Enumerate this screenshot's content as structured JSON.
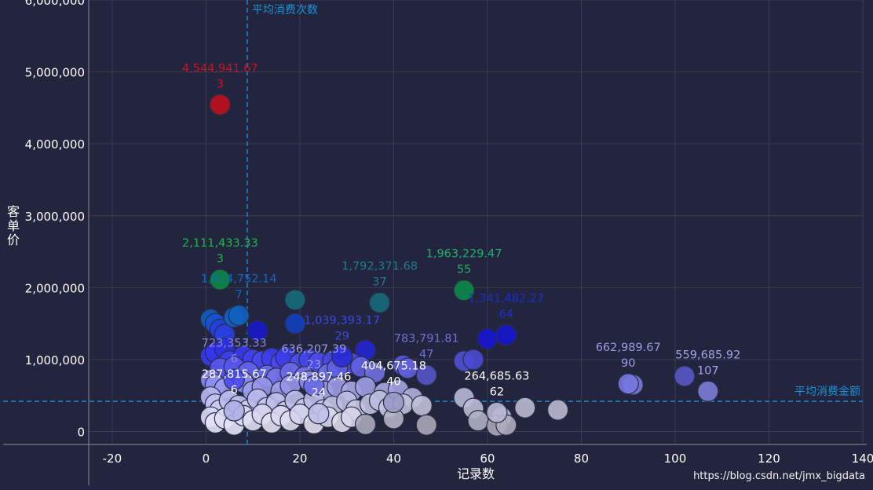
{
  "watermark": "https://blog.csdn.net/jmx_bigdata",
  "chart_data": {
    "type": "scatter",
    "xlabel": "记录数",
    "ylabel": "客单价",
    "xlim": [
      -25,
      140
    ],
    "ylim": [
      -180000,
      6000000
    ],
    "xticks": [
      -20,
      0,
      20,
      40,
      60,
      80,
      100,
      120,
      140
    ],
    "yticks": [
      0,
      1000000,
      2000000,
      3000000,
      4000000,
      5000000,
      6000000
    ],
    "xtick_labels": [
      "-20",
      "0",
      "20",
      "40",
      "60",
      "80",
      "100",
      "120",
      "140"
    ],
    "ytick_labels": [
      "0",
      "1,000,000",
      "2,000,000",
      "3,000,000",
      "4,000,000",
      "5,000,000",
      "6,000,000"
    ],
    "grid": true,
    "avg_x": 8.8,
    "avg_x_label": "平均消费次数",
    "avg_y": 420000,
    "avg_y_label": "平均消费金额",
    "colors": {
      "background": "#22253d",
      "grid": "#3a3e52",
      "avg_line": "#1e90d6",
      "red": "#c0101c",
      "green": "#0b8a3f",
      "teal": "#136c7c",
      "deep_blue": "#1010c8",
      "blue": "#3a3adf",
      "light": "#e8e8ff"
    },
    "labeled_points": [
      {
        "x": 3,
        "y": 4544941.67,
        "value_text": "4,544,941.67",
        "count_text": "3",
        "color": "#c0101c",
        "label_color": "#cc1020"
      },
      {
        "x": 3,
        "y": 2111433.33,
        "value_text": "2,111,433.33",
        "count_text": "3",
        "color": "#0b8a3f",
        "label_color": "#1bb650"
      },
      {
        "x": 55,
        "y": 1963229.47,
        "value_text": "1,963,229.47",
        "count_text": "55",
        "color": "#0b8a4a",
        "label_color": "#1db26a"
      },
      {
        "x": 37,
        "y": 1792371.68,
        "value_text": "1,792,371.68",
        "count_text": "37",
        "color": "#166a7a",
        "label_color": "#1e7c8e"
      },
      {
        "x": 7,
        "y": 1614752.14,
        "value_text": "1,614,752.14",
        "count_text": "7",
        "color": "#1060c0",
        "label_color": "#1466c6"
      },
      {
        "x": 64,
        "y": 1341482.27,
        "value_text": "1,341,482.27",
        "count_text": "64",
        "color": "#1515d0",
        "label_color": "#1a2ed4"
      },
      {
        "x": 29,
        "y": 1039393.17,
        "value_text": "1,039,393.17",
        "count_text": "29",
        "color": "#2b2bd8",
        "label_color": "#3a4ae0"
      },
      {
        "x": 47,
        "y": 783791.81,
        "value_text": "783,791.81",
        "count_text": "47",
        "color": "#5555c8",
        "label_color": "#7070d8"
      },
      {
        "x": 6,
        "y": 723353.33,
        "value_text": "723,353.33",
        "count_text": "6",
        "color": "#4a4af0",
        "label_color": "#8a8ad8"
      },
      {
        "x": 23,
        "y": 636207.39,
        "value_text": "636,207.39",
        "count_text": "23",
        "color": "#6a6ae6",
        "label_color": "#9a9ae6"
      },
      {
        "x": 90,
        "y": 662989.67,
        "value_text": "662,989.67",
        "count_text": "90",
        "color": "#7777e0",
        "label_color": "#9c9ce6"
      },
      {
        "x": 107,
        "y": 559685.92,
        "value_text": "559,685.92",
        "count_text": "107",
        "color": "#7c7cd6",
        "label_color": "#a4a4ea"
      },
      {
        "x": 40,
        "y": 404675.18,
        "value_text": "404,675.18",
        "count_text": "40",
        "color": "#9a9ac8",
        "label_color": "#ffffff"
      },
      {
        "x": 6,
        "y": 287815.67,
        "value_text": "287,815.67",
        "count_text": "6",
        "color": "#b0b0e6",
        "label_color": "#ffffff"
      },
      {
        "x": 24,
        "y": 248897.46,
        "value_text": "248,897.46",
        "count_text": "24",
        "color": "#c0c0ea",
        "label_color": "#ffffff"
      },
      {
        "x": 62,
        "y": 264685.63,
        "value_text": "264,685.63",
        "count_text": "62",
        "color": "#b8b8d4",
        "label_color": "#ffffff"
      }
    ],
    "points": [
      {
        "x": 1,
        "y": 1560000,
        "color": "#1060c0"
      },
      {
        "x": 2,
        "y": 1500000,
        "color": "#1a50d0"
      },
      {
        "x": 3,
        "y": 1420000,
        "color": "#2040d8"
      },
      {
        "x": 4,
        "y": 1350000,
        "color": "#2a3ee0"
      },
      {
        "x": 6,
        "y": 1590000,
        "color": "#1464c4"
      },
      {
        "x": 11,
        "y": 1400000,
        "color": "#1818cc"
      },
      {
        "x": 19,
        "y": 1830000,
        "color": "#156c7a"
      },
      {
        "x": 19,
        "y": 1500000,
        "color": "#1440c0"
      },
      {
        "x": 60,
        "y": 1290000,
        "color": "#1515d0"
      },
      {
        "x": 34,
        "y": 1130000,
        "color": "#2525d4"
      },
      {
        "x": 1,
        "y": 1050000,
        "color": "#3a3aee"
      },
      {
        "x": 2,
        "y": 1100000,
        "color": "#3535ec"
      },
      {
        "x": 4,
        "y": 1150000,
        "color": "#3030e8"
      },
      {
        "x": 5,
        "y": 980000,
        "color": "#4040f0"
      },
      {
        "x": 8,
        "y": 1050000,
        "color": "#3a3aee"
      },
      {
        "x": 10,
        "y": 1000000,
        "color": "#4040f0"
      },
      {
        "x": 12,
        "y": 980000,
        "color": "#4848ee"
      },
      {
        "x": 14,
        "y": 1020000,
        "color": "#3e3eee"
      },
      {
        "x": 16,
        "y": 960000,
        "color": "#4a4aee"
      },
      {
        "x": 17,
        "y": 1030000,
        "color": "#3c3cec"
      },
      {
        "x": 20,
        "y": 950000,
        "color": "#5050ee"
      },
      {
        "x": 22,
        "y": 1000000,
        "color": "#4444ee"
      },
      {
        "x": 24,
        "y": 960000,
        "color": "#4c4cee"
      },
      {
        "x": 27,
        "y": 980000,
        "color": "#4848ec"
      },
      {
        "x": 29,
        "y": 1060000,
        "color": "#3a3ae8"
      },
      {
        "x": 31,
        "y": 950000,
        "color": "#4e4eea"
      },
      {
        "x": 42,
        "y": 920000,
        "color": "#5a5ade"
      },
      {
        "x": 43,
        "y": 880000,
        "color": "#6060dc"
      },
      {
        "x": 55,
        "y": 980000,
        "color": "#5050d4"
      },
      {
        "x": 57,
        "y": 1000000,
        "color": "#4a4ad2"
      },
      {
        "x": 3,
        "y": 880000,
        "color": "#5a5af0"
      },
      {
        "x": 6,
        "y": 900000,
        "color": "#5858ee"
      },
      {
        "x": 9,
        "y": 830000,
        "color": "#6464ee"
      },
      {
        "x": 13,
        "y": 780000,
        "color": "#6c6cec"
      },
      {
        "x": 15,
        "y": 740000,
        "color": "#7474ea"
      },
      {
        "x": 18,
        "y": 820000,
        "color": "#6a6aea"
      },
      {
        "x": 21,
        "y": 760000,
        "color": "#7272e8"
      },
      {
        "x": 26,
        "y": 800000,
        "color": "#6e6ee6"
      },
      {
        "x": 28,
        "y": 880000,
        "color": "#6060e6"
      },
      {
        "x": 33,
        "y": 900000,
        "color": "#6060e2"
      },
      {
        "x": 36,
        "y": 820000,
        "color": "#7070de"
      },
      {
        "x": 1,
        "y": 720000,
        "color": "#8888f0"
      },
      {
        "x": 2,
        "y": 650000,
        "color": "#9090f0"
      },
      {
        "x": 4,
        "y": 600000,
        "color": "#9a9af0"
      },
      {
        "x": 8,
        "y": 680000,
        "color": "#8e8eee"
      },
      {
        "x": 10,
        "y": 560000,
        "color": "#a0a0ee"
      },
      {
        "x": 12,
        "y": 620000,
        "color": "#9898ec"
      },
      {
        "x": 16,
        "y": 560000,
        "color": "#a2a2ec"
      },
      {
        "x": 18,
        "y": 640000,
        "color": "#9696ea"
      },
      {
        "x": 22,
        "y": 700000,
        "color": "#8a8ae8"
      },
      {
        "x": 25,
        "y": 560000,
        "color": "#a6a6ea"
      },
      {
        "x": 28,
        "y": 620000,
        "color": "#9c9ce8"
      },
      {
        "x": 31,
        "y": 560000,
        "color": "#a8a8e6"
      },
      {
        "x": 34,
        "y": 620000,
        "color": "#9e9ee4"
      },
      {
        "x": 38,
        "y": 540000,
        "color": "#aaaae2"
      },
      {
        "x": 41,
        "y": 580000,
        "color": "#a4a4e0"
      },
      {
        "x": 44,
        "y": 470000,
        "color": "#b0b0dc"
      },
      {
        "x": 91,
        "y": 650000,
        "color": "#7a7ae0"
      },
      {
        "x": 102,
        "y": 770000,
        "color": "#5656c4"
      },
      {
        "x": 1,
        "y": 480000,
        "color": "#b8b8f2"
      },
      {
        "x": 2,
        "y": 380000,
        "color": "#c2c2f2"
      },
      {
        "x": 3,
        "y": 300000,
        "color": "#cacaf2"
      },
      {
        "x": 5,
        "y": 430000,
        "color": "#bcbcf0"
      },
      {
        "x": 7,
        "y": 360000,
        "color": "#c4c4f0"
      },
      {
        "x": 9,
        "y": 300000,
        "color": "#cccced"
      },
      {
        "x": 11,
        "y": 450000,
        "color": "#babaee"
      },
      {
        "x": 13,
        "y": 330000,
        "color": "#c8c8ee"
      },
      {
        "x": 15,
        "y": 400000,
        "color": "#c0c0ec"
      },
      {
        "x": 17,
        "y": 280000,
        "color": "#ceceec"
      },
      {
        "x": 19,
        "y": 430000,
        "color": "#bebeea"
      },
      {
        "x": 21,
        "y": 320000,
        "color": "#c8c8ea"
      },
      {
        "x": 23,
        "y": 440000,
        "color": "#bcbce8"
      },
      {
        "x": 25,
        "y": 300000,
        "color": "#cacae8"
      },
      {
        "x": 27,
        "y": 350000,
        "color": "#c4c4e6"
      },
      {
        "x": 30,
        "y": 420000,
        "color": "#bebee4"
      },
      {
        "x": 32,
        "y": 300000,
        "color": "#c8c8e2"
      },
      {
        "x": 35,
        "y": 380000,
        "color": "#c2c2e0"
      },
      {
        "x": 37,
        "y": 430000,
        "color": "#bcbcde"
      },
      {
        "x": 39,
        "y": 330000,
        "color": "#c6c6dc"
      },
      {
        "x": 42,
        "y": 380000,
        "color": "#c0c0da"
      },
      {
        "x": 46,
        "y": 360000,
        "color": "#c0c0d8"
      },
      {
        "x": 55,
        "y": 470000,
        "color": "#b8b8d8"
      },
      {
        "x": 57,
        "y": 320000,
        "color": "#bcbcd6"
      },
      {
        "x": 63,
        "y": 200000,
        "color": "#c0c0d4"
      },
      {
        "x": 68,
        "y": 330000,
        "color": "#babad2"
      },
      {
        "x": 75,
        "y": 300000,
        "color": "#babad0"
      },
      {
        "x": 1,
        "y": 200000,
        "color": "#dadaf8"
      },
      {
        "x": 2,
        "y": 120000,
        "color": "#e2e2fa"
      },
      {
        "x": 4,
        "y": 180000,
        "color": "#dedef6"
      },
      {
        "x": 6,
        "y": 90000,
        "color": "#e4e4f8"
      },
      {
        "x": 8,
        "y": 220000,
        "color": "#d8d8f4"
      },
      {
        "x": 10,
        "y": 150000,
        "color": "#e0e0f4"
      },
      {
        "x": 12,
        "y": 240000,
        "color": "#d6d6f2"
      },
      {
        "x": 14,
        "y": 120000,
        "color": "#e2e2f2"
      },
      {
        "x": 16,
        "y": 220000,
        "color": "#d8d8f0"
      },
      {
        "x": 18,
        "y": 150000,
        "color": "#dedef0"
      },
      {
        "x": 20,
        "y": 240000,
        "color": "#d4d4ee"
      },
      {
        "x": 23,
        "y": 110000,
        "color": "#e0e0ee"
      },
      {
        "x": 26,
        "y": 200000,
        "color": "#d8d8ec"
      },
      {
        "x": 29,
        "y": 130000,
        "color": "#dcdcea"
      },
      {
        "x": 31,
        "y": 200000,
        "color": "#d6d6e8"
      },
      {
        "x": 34,
        "y": 100000,
        "color": "#aaaabb"
      },
      {
        "x": 40,
        "y": 180000,
        "color": "#b4b4c4"
      },
      {
        "x": 47,
        "y": 90000,
        "color": "#a8a8b8"
      },
      {
        "x": 58,
        "y": 150000,
        "color": "#b0b0c4"
      },
      {
        "x": 62,
        "y": 80000,
        "color": "#a8a8b8"
      },
      {
        "x": 64,
        "y": 90000,
        "color": "#acacbc"
      }
    ]
  }
}
